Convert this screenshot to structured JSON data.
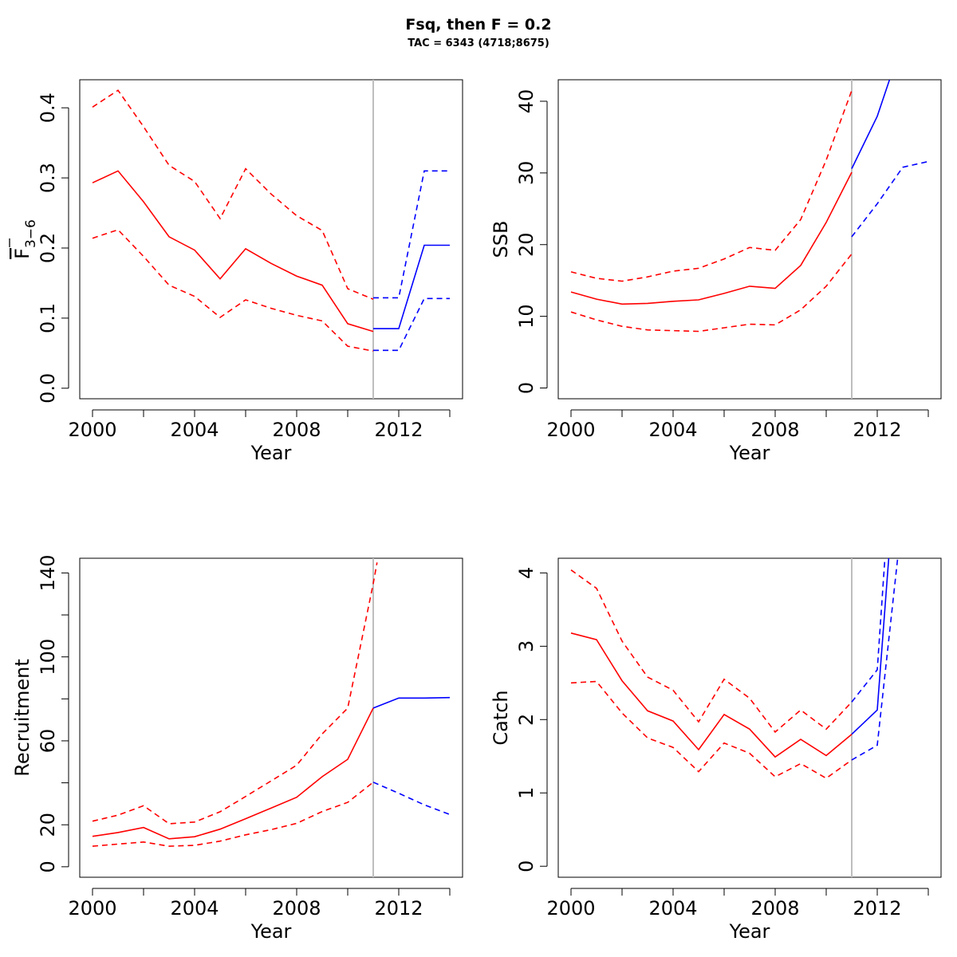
{
  "header": {
    "title": "Fsq, then F = 0.2",
    "subtitle": "TAC = 6343 (4718;8675)"
  },
  "colors": {
    "historic": "#ff0000",
    "forecast": "#0000ff",
    "divider": "#bebebe"
  },
  "chart_data": [
    {
      "id": "fbar",
      "type": "line",
      "xlabel": "Year",
      "ylabel": "F3-6",
      "ylabel_main": "F",
      "ylabel_sub": "3−6",
      "xlim": [
        1999.5,
        2014.5
      ],
      "ylim": [
        -0.015,
        0.44
      ],
      "xticks": [
        2000,
        2002,
        2004,
        2006,
        2008,
        2010,
        2012,
        2014
      ],
      "xtick_labels": [
        "2000",
        "2004",
        "2008",
        "2012"
      ],
      "yticks": [
        0,
        0.1,
        0.2,
        0.3,
        0.4
      ],
      "ytick_labels": [
        "0.0",
        "0.1",
        "0.2",
        "0.3",
        "0.4"
      ],
      "vline": 2011,
      "series": [
        {
          "style": "historic",
          "dash": false,
          "x": [
            2000,
            2001,
            2002,
            2003,
            2004,
            2005,
            2006,
            2007,
            2008,
            2009,
            2010,
            2011
          ],
          "y": [
            0.293,
            0.31,
            0.266,
            0.216,
            0.197,
            0.156,
            0.199,
            0.178,
            0.16,
            0.147,
            0.092,
            0.081
          ]
        },
        {
          "style": "historic",
          "dash": true,
          "x": [
            2000,
            2001,
            2002,
            2003,
            2004,
            2005,
            2006,
            2007,
            2008,
            2009,
            2010,
            2011
          ],
          "y": [
            0.401,
            0.425,
            0.373,
            0.318,
            0.295,
            0.242,
            0.313,
            0.277,
            0.246,
            0.225,
            0.142,
            0.127
          ]
        },
        {
          "style": "historic",
          "dash": true,
          "x": [
            2000,
            2001,
            2002,
            2003,
            2004,
            2005,
            2006,
            2007,
            2008,
            2009,
            2010,
            2011
          ],
          "y": [
            0.214,
            0.226,
            0.188,
            0.147,
            0.131,
            0.101,
            0.126,
            0.114,
            0.104,
            0.096,
            0.06,
            0.053
          ]
        },
        {
          "style": "forecast",
          "dash": false,
          "x": [
            2011,
            2012,
            2013,
            2014
          ],
          "y": [
            0.085,
            0.085,
            0.204,
            0.204
          ]
        },
        {
          "style": "forecast",
          "dash": true,
          "x": [
            2011,
            2012,
            2013,
            2014
          ],
          "y": [
            0.129,
            0.129,
            0.31,
            0.31
          ]
        },
        {
          "style": "forecast",
          "dash": true,
          "x": [
            2011,
            2012,
            2013,
            2014
          ],
          "y": [
            0.054,
            0.054,
            0.128,
            0.128
          ]
        }
      ]
    },
    {
      "id": "ssb",
      "type": "line",
      "xlabel": "Year",
      "ylabel": "SSB",
      "xlim": [
        1999.5,
        2014.5
      ],
      "ylim": [
        -1.5,
        43
      ],
      "xticks": [
        2000,
        2002,
        2004,
        2006,
        2008,
        2010,
        2012,
        2014
      ],
      "xtick_labels": [
        "2000",
        "2004",
        "2008",
        "2012"
      ],
      "yticks": [
        0,
        10,
        20,
        30,
        40
      ],
      "ytick_labels": [
        "0",
        "10",
        "20",
        "30",
        "40"
      ],
      "vline": 2011,
      "series": [
        {
          "style": "historic",
          "dash": false,
          "x": [
            2000,
            2001,
            2002,
            2003,
            2004,
            2005,
            2006,
            2007,
            2008,
            2009,
            2010,
            2011
          ],
          "y": [
            13.4,
            12.4,
            11.7,
            11.8,
            12.1,
            12.3,
            13.2,
            14.2,
            13.9,
            17.1,
            23.1,
            30.1
          ]
        },
        {
          "style": "historic",
          "dash": true,
          "x": [
            2000,
            2001,
            2002,
            2003,
            2004,
            2005,
            2006,
            2007,
            2008,
            2009,
            2010,
            2011
          ],
          "y": [
            16.2,
            15.3,
            14.9,
            15.5,
            16.3,
            16.7,
            18.0,
            19.6,
            19.2,
            23.5,
            31.8,
            41.5
          ]
        },
        {
          "style": "historic",
          "dash": true,
          "x": [
            2000,
            2001,
            2002,
            2003,
            2004,
            2005,
            2006,
            2007,
            2008,
            2009,
            2010,
            2011
          ],
          "y": [
            10.6,
            9.5,
            8.6,
            8.1,
            8.0,
            7.9,
            8.4,
            8.9,
            8.8,
            10.9,
            14.2,
            18.7
          ]
        },
        {
          "style": "forecast",
          "dash": false,
          "x": [
            2011,
            2012,
            2012.5
          ],
          "y": [
            30.6,
            37.9,
            43.2
          ]
        },
        {
          "style": "forecast",
          "dash": true,
          "x": [
            2011,
            2012,
            2013,
            2014
          ],
          "y": [
            21.1,
            25.7,
            30.8,
            31.6
          ]
        }
      ]
    },
    {
      "id": "recruitment",
      "type": "line",
      "xlabel": "Year",
      "ylabel": "Recruitment",
      "xlim": [
        1999.5,
        2014.5
      ],
      "ylim": [
        -5,
        147
      ],
      "xticks": [
        2000,
        2002,
        2004,
        2006,
        2008,
        2010,
        2012,
        2014
      ],
      "xtick_labels": [
        "2000",
        "2004",
        "2008",
        "2012"
      ],
      "yticks": [
        0,
        20,
        40,
        60,
        80,
        100,
        120,
        140
      ],
      "ytick_labels": [
        "0",
        "20",
        "",
        "60",
        "",
        "100",
        "",
        "140"
      ],
      "vline": 2011,
      "series": [
        {
          "style": "historic",
          "dash": false,
          "x": [
            2000,
            2001,
            2002,
            2003,
            2004,
            2005,
            2006,
            2007,
            2008,
            2009,
            2010,
            2011
          ],
          "y": [
            14.5,
            16.3,
            18.7,
            13.3,
            14.3,
            17.9,
            22.9,
            28.0,
            33.1,
            42.9,
            51.2,
            75.6
          ]
        },
        {
          "style": "historic",
          "dash": true,
          "x": [
            2000,
            2001,
            2002,
            2003,
            2004,
            2005,
            2006,
            2007,
            2008,
            2009,
            2010,
            2011,
            2011.15
          ],
          "y": [
            21.7,
            24.6,
            29.1,
            20.5,
            21.3,
            26.2,
            33.5,
            40.9,
            48.4,
            63.3,
            75.6,
            134.9,
            145
          ]
        },
        {
          "style": "historic",
          "dash": true,
          "x": [
            2000,
            2001,
            2002,
            2003,
            2004,
            2005,
            2006,
            2007,
            2008,
            2009,
            2010,
            2011
          ],
          "y": [
            9.8,
            10.8,
            11.8,
            9.8,
            10.2,
            12.2,
            15.2,
            17.7,
            20.7,
            26.3,
            30.7,
            40.3
          ]
        },
        {
          "style": "forecast",
          "dash": false,
          "x": [
            2011,
            2012,
            2013,
            2014
          ],
          "y": [
            75.6,
            80.4,
            80.4,
            80.6
          ]
        },
        {
          "style": "forecast",
          "dash": true,
          "x": [
            2011,
            2012,
            2013,
            2014
          ],
          "y": [
            40.3,
            35.0,
            29.5,
            24.9
          ]
        }
      ]
    },
    {
      "id": "catch",
      "type": "line",
      "xlabel": "Year",
      "ylabel": "Catch",
      "xlim": [
        1999.5,
        2014.5
      ],
      "ylim": [
        -0.15,
        4.2
      ],
      "xticks": [
        2000,
        2002,
        2004,
        2006,
        2008,
        2010,
        2012,
        2014
      ],
      "xtick_labels": [
        "2000",
        "2004",
        "2008",
        "2012"
      ],
      "yticks": [
        0,
        1,
        2,
        3,
        4
      ],
      "ytick_labels": [
        "0",
        "1",
        "2",
        "3",
        "4"
      ],
      "vline": 2011,
      "series": [
        {
          "style": "historic",
          "dash": false,
          "x": [
            2000,
            2001,
            2002,
            2003,
            2004,
            2005,
            2006,
            2007,
            2008,
            2009,
            2010,
            2011
          ],
          "y": [
            3.18,
            3.09,
            2.53,
            2.12,
            1.98,
            1.59,
            2.07,
            1.87,
            1.49,
            1.73,
            1.51,
            1.8
          ]
        },
        {
          "style": "historic",
          "dash": true,
          "x": [
            2000,
            2001,
            2002,
            2003,
            2004,
            2005,
            2006,
            2007,
            2008,
            2009,
            2010,
            2011
          ],
          "y": [
            4.04,
            3.79,
            3.07,
            2.58,
            2.4,
            1.97,
            2.55,
            2.29,
            1.83,
            2.13,
            1.87,
            2.24
          ]
        },
        {
          "style": "historic",
          "dash": true,
          "x": [
            2000,
            2001,
            2002,
            2003,
            2004,
            2005,
            2006,
            2007,
            2008,
            2009,
            2010,
            2011
          ],
          "y": [
            2.5,
            2.52,
            2.09,
            1.75,
            1.62,
            1.29,
            1.68,
            1.54,
            1.22,
            1.4,
            1.2,
            1.45
          ]
        },
        {
          "style": "forecast",
          "dash": false,
          "x": [
            2011,
            2012,
            2012.45
          ],
          "y": [
            1.8,
            2.13,
            4.2
          ]
        },
        {
          "style": "forecast",
          "dash": true,
          "x": [
            2011,
            2012,
            2012.3
          ],
          "y": [
            2.24,
            2.68,
            4.2
          ]
        },
        {
          "style": "forecast",
          "dash": true,
          "x": [
            2011,
            2012,
            2012.8
          ],
          "y": [
            1.45,
            1.65,
            4.2
          ]
        }
      ]
    }
  ]
}
